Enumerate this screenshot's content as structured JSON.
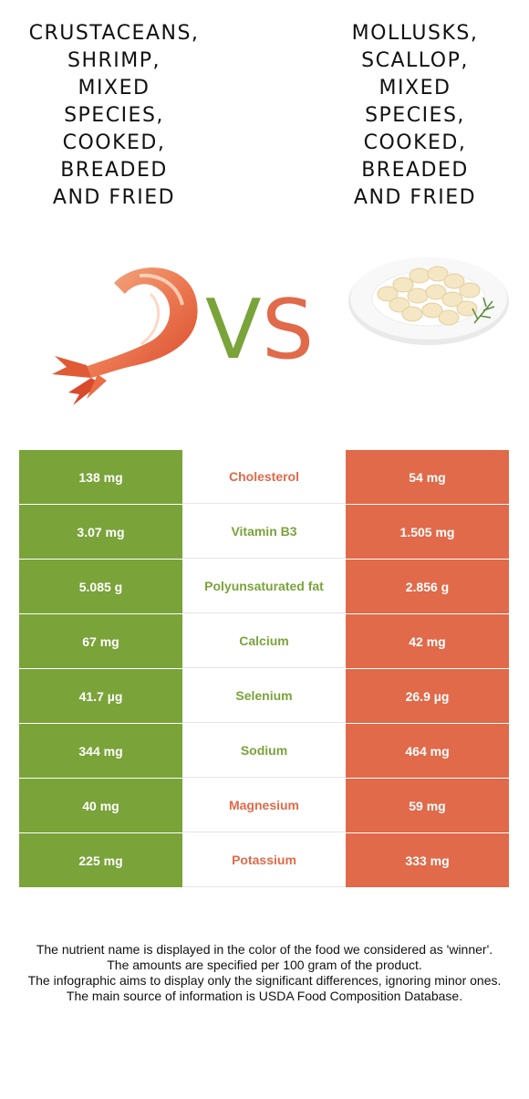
{
  "colors": {
    "green": "#7aa33a",
    "orange": "#e06a4a"
  },
  "left_food": {
    "title_lines": [
      "Crustaceans,",
      "shrimp,",
      "mixed",
      "species,",
      "cooked,",
      "breaded",
      "and fried"
    ],
    "image_icon": "shrimp-image"
  },
  "right_food": {
    "title_lines": [
      "Mollusks,",
      "scallop,",
      "mixed",
      "species,",
      "cooked,",
      "breaded",
      "and fried"
    ],
    "image_icon": "scallops-plate-image"
  },
  "vs": {
    "v": "V",
    "s": "S"
  },
  "rows": [
    {
      "nutrient": "Cholesterol",
      "left": "138 mg",
      "right": "54 mg",
      "winner": "right"
    },
    {
      "nutrient": "Vitamin B3",
      "left": "3.07 mg",
      "right": "1.505 mg",
      "winner": "left"
    },
    {
      "nutrient": "Polyunsaturated fat",
      "left": "5.085 g",
      "right": "2.856 g",
      "winner": "left"
    },
    {
      "nutrient": "Calcium",
      "left": "67 mg",
      "right": "42 mg",
      "winner": "left"
    },
    {
      "nutrient": "Selenium",
      "left": "41.7 µg",
      "right": "26.9 µg",
      "winner": "left"
    },
    {
      "nutrient": "Sodium",
      "left": "344 mg",
      "right": "464 mg",
      "winner": "left"
    },
    {
      "nutrient": "Magnesium",
      "left": "40 mg",
      "right": "59 mg",
      "winner": "right"
    },
    {
      "nutrient": "Potassium",
      "left": "225 mg",
      "right": "333 mg",
      "winner": "right"
    }
  ],
  "notes": [
    "The nutrient name is displayed in the color of the food we considered as 'winner'.",
    "The amounts are specified per 100 gram of the product.",
    "The infographic aims to display only the significant differences, ignoring minor ones.",
    "The main source of information is USDA Food Composition Database."
  ]
}
